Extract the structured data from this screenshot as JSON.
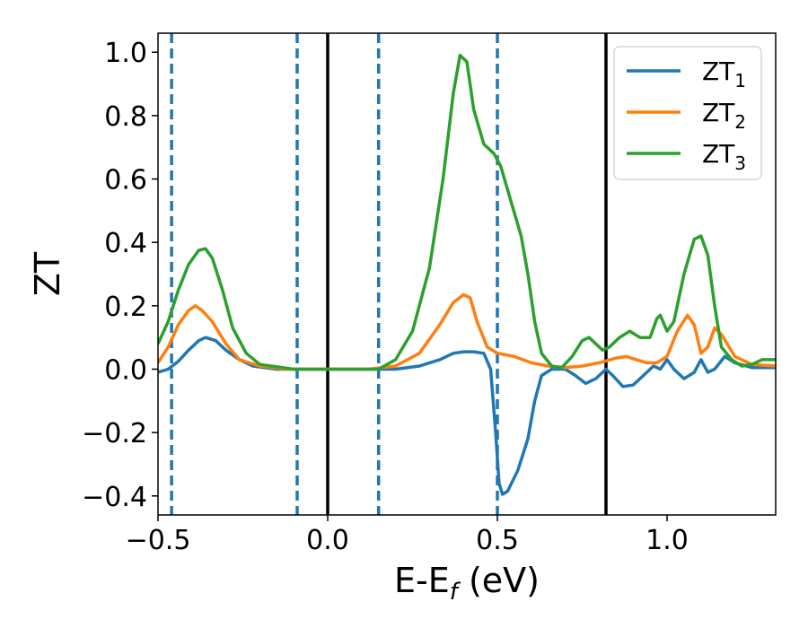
{
  "chart_data": {
    "type": "line",
    "xlabel": {
      "main": "E-E",
      "sub": "f",
      "tail": " (eV)"
    },
    "ylabel": "ZT",
    "xlim": [
      -0.5,
      1.32
    ],
    "ylim": [
      -0.46,
      1.06
    ],
    "xticks": [
      {
        "value": -0.5,
        "label": "−0.5"
      },
      {
        "value": 0.0,
        "label": "0.0"
      },
      {
        "value": 0.5,
        "label": "0.5"
      },
      {
        "value": 1.0,
        "label": "1.0"
      }
    ],
    "yticks": [
      {
        "value": -0.4,
        "label": "−0.4"
      },
      {
        "value": -0.2,
        "label": "−0.2"
      },
      {
        "value": 0.0,
        "label": "0.0"
      },
      {
        "value": 0.2,
        "label": "0.2"
      },
      {
        "value": 0.4,
        "label": "0.4"
      },
      {
        "value": 0.6,
        "label": "0.6"
      },
      {
        "value": 0.8,
        "label": "0.8"
      },
      {
        "value": 1.0,
        "label": "1.0"
      }
    ],
    "grid": false,
    "legend_position": "top-right",
    "vlines": [
      {
        "x": -0.46,
        "style": "dashed",
        "color": "#1f77b4"
      },
      {
        "x": -0.09,
        "style": "dashed",
        "color": "#1f77b4"
      },
      {
        "x": 0.0,
        "style": "solid",
        "color": "#000000"
      },
      {
        "x": 0.15,
        "style": "dashed",
        "color": "#1f77b4"
      },
      {
        "x": 0.5,
        "style": "dashed",
        "color": "#1f77b4"
      },
      {
        "x": 0.82,
        "style": "solid",
        "color": "#000000"
      }
    ],
    "series": [
      {
        "name": "ZT",
        "name_sub": "1",
        "color": "#1f77b4",
        "points": [
          [
            -0.5,
            -0.01
          ],
          [
            -0.47,
            0.0
          ],
          [
            -0.44,
            0.025
          ],
          [
            -0.41,
            0.06
          ],
          [
            -0.38,
            0.09
          ],
          [
            -0.36,
            0.1
          ],
          [
            -0.33,
            0.09
          ],
          [
            -0.3,
            0.06
          ],
          [
            -0.26,
            0.03
          ],
          [
            -0.22,
            0.01
          ],
          [
            -0.15,
            0.0
          ],
          [
            -0.05,
            0.0
          ],
          [
            0.1,
            0.0
          ],
          [
            0.2,
            0.0
          ],
          [
            0.27,
            0.01
          ],
          [
            0.33,
            0.03
          ],
          [
            0.37,
            0.05
          ],
          [
            0.4,
            0.055
          ],
          [
            0.43,
            0.055
          ],
          [
            0.46,
            0.05
          ],
          [
            0.48,
            0.0
          ],
          [
            0.495,
            -0.2
          ],
          [
            0.505,
            -0.36
          ],
          [
            0.515,
            -0.395
          ],
          [
            0.53,
            -0.385
          ],
          [
            0.56,
            -0.32
          ],
          [
            0.59,
            -0.22
          ],
          [
            0.61,
            -0.1
          ],
          [
            0.63,
            -0.02
          ],
          [
            0.66,
            0.0
          ],
          [
            0.7,
            0.0
          ],
          [
            0.73,
            -0.02
          ],
          [
            0.76,
            -0.045
          ],
          [
            0.79,
            -0.03
          ],
          [
            0.82,
            0.0
          ],
          [
            0.84,
            -0.02
          ],
          [
            0.87,
            -0.055
          ],
          [
            0.9,
            -0.05
          ],
          [
            0.93,
            -0.02
          ],
          [
            0.96,
            0.01
          ],
          [
            0.98,
            0.0
          ],
          [
            1.0,
            0.03
          ],
          [
            1.02,
            0.0
          ],
          [
            1.05,
            -0.03
          ],
          [
            1.08,
            -0.01
          ],
          [
            1.1,
            0.03
          ],
          [
            1.12,
            -0.01
          ],
          [
            1.14,
            0.0
          ],
          [
            1.17,
            0.04
          ],
          [
            1.2,
            0.02
          ],
          [
            1.25,
            0.005
          ],
          [
            1.32,
            0.005
          ]
        ]
      },
      {
        "name": "ZT",
        "name_sub": "2",
        "color": "#ff7f0e",
        "points": [
          [
            -0.5,
            0.02
          ],
          [
            -0.47,
            0.07
          ],
          [
            -0.44,
            0.14
          ],
          [
            -0.41,
            0.185
          ],
          [
            -0.39,
            0.2
          ],
          [
            -0.37,
            0.185
          ],
          [
            -0.34,
            0.15
          ],
          [
            -0.3,
            0.08
          ],
          [
            -0.26,
            0.03
          ],
          [
            -0.2,
            0.01
          ],
          [
            -0.12,
            0.0
          ],
          [
            0.0,
            0.0
          ],
          [
            0.12,
            0.0
          ],
          [
            0.2,
            0.01
          ],
          [
            0.27,
            0.05
          ],
          [
            0.33,
            0.14
          ],
          [
            0.37,
            0.21
          ],
          [
            0.4,
            0.235
          ],
          [
            0.42,
            0.225
          ],
          [
            0.44,
            0.15
          ],
          [
            0.47,
            0.07
          ],
          [
            0.5,
            0.05
          ],
          [
            0.55,
            0.04
          ],
          [
            0.6,
            0.02
          ],
          [
            0.65,
            0.01
          ],
          [
            0.7,
            0.005
          ],
          [
            0.75,
            0.01
          ],
          [
            0.8,
            0.02
          ],
          [
            0.85,
            0.035
          ],
          [
            0.88,
            0.04
          ],
          [
            0.91,
            0.03
          ],
          [
            0.94,
            0.02
          ],
          [
            0.97,
            0.02
          ],
          [
            1.0,
            0.04
          ],
          [
            1.03,
            0.12
          ],
          [
            1.06,
            0.17
          ],
          [
            1.08,
            0.14
          ],
          [
            1.1,
            0.05
          ],
          [
            1.12,
            0.07
          ],
          [
            1.14,
            0.13
          ],
          [
            1.16,
            0.11
          ],
          [
            1.2,
            0.04
          ],
          [
            1.25,
            0.015
          ],
          [
            1.32,
            0.01
          ]
        ]
      },
      {
        "name": "ZT",
        "name_sub": "3",
        "color": "#2ca02c",
        "points": [
          [
            -0.5,
            0.08
          ],
          [
            -0.47,
            0.15
          ],
          [
            -0.44,
            0.25
          ],
          [
            -0.41,
            0.33
          ],
          [
            -0.38,
            0.375
          ],
          [
            -0.36,
            0.38
          ],
          [
            -0.34,
            0.35
          ],
          [
            -0.31,
            0.25
          ],
          [
            -0.28,
            0.13
          ],
          [
            -0.24,
            0.05
          ],
          [
            -0.2,
            0.015
          ],
          [
            -0.1,
            0.0
          ],
          [
            0.0,
            0.0
          ],
          [
            0.15,
            0.0
          ],
          [
            0.2,
            0.03
          ],
          [
            0.25,
            0.12
          ],
          [
            0.3,
            0.32
          ],
          [
            0.34,
            0.6
          ],
          [
            0.37,
            0.87
          ],
          [
            0.39,
            0.99
          ],
          [
            0.41,
            0.97
          ],
          [
            0.43,
            0.82
          ],
          [
            0.46,
            0.71
          ],
          [
            0.49,
            0.68
          ],
          [
            0.51,
            0.64
          ],
          [
            0.54,
            0.53
          ],
          [
            0.57,
            0.42
          ],
          [
            0.59,
            0.3
          ],
          [
            0.61,
            0.15
          ],
          [
            0.63,
            0.05
          ],
          [
            0.66,
            0.01
          ],
          [
            0.69,
            0.005
          ],
          [
            0.72,
            0.04
          ],
          [
            0.75,
            0.09
          ],
          [
            0.77,
            0.1
          ],
          [
            0.79,
            0.08
          ],
          [
            0.81,
            0.06
          ],
          [
            0.83,
            0.07
          ],
          [
            0.86,
            0.1
          ],
          [
            0.89,
            0.12
          ],
          [
            0.92,
            0.1
          ],
          [
            0.95,
            0.1
          ],
          [
            0.97,
            0.16
          ],
          [
            0.98,
            0.17
          ],
          [
            1.0,
            0.12
          ],
          [
            1.02,
            0.15
          ],
          [
            1.05,
            0.3
          ],
          [
            1.08,
            0.41
          ],
          [
            1.1,
            0.42
          ],
          [
            1.12,
            0.36
          ],
          [
            1.14,
            0.2
          ],
          [
            1.16,
            0.07
          ],
          [
            1.19,
            0.03
          ],
          [
            1.22,
            0.01
          ],
          [
            1.25,
            0.015
          ],
          [
            1.28,
            0.03
          ],
          [
            1.32,
            0.03
          ]
        ]
      }
    ]
  }
}
